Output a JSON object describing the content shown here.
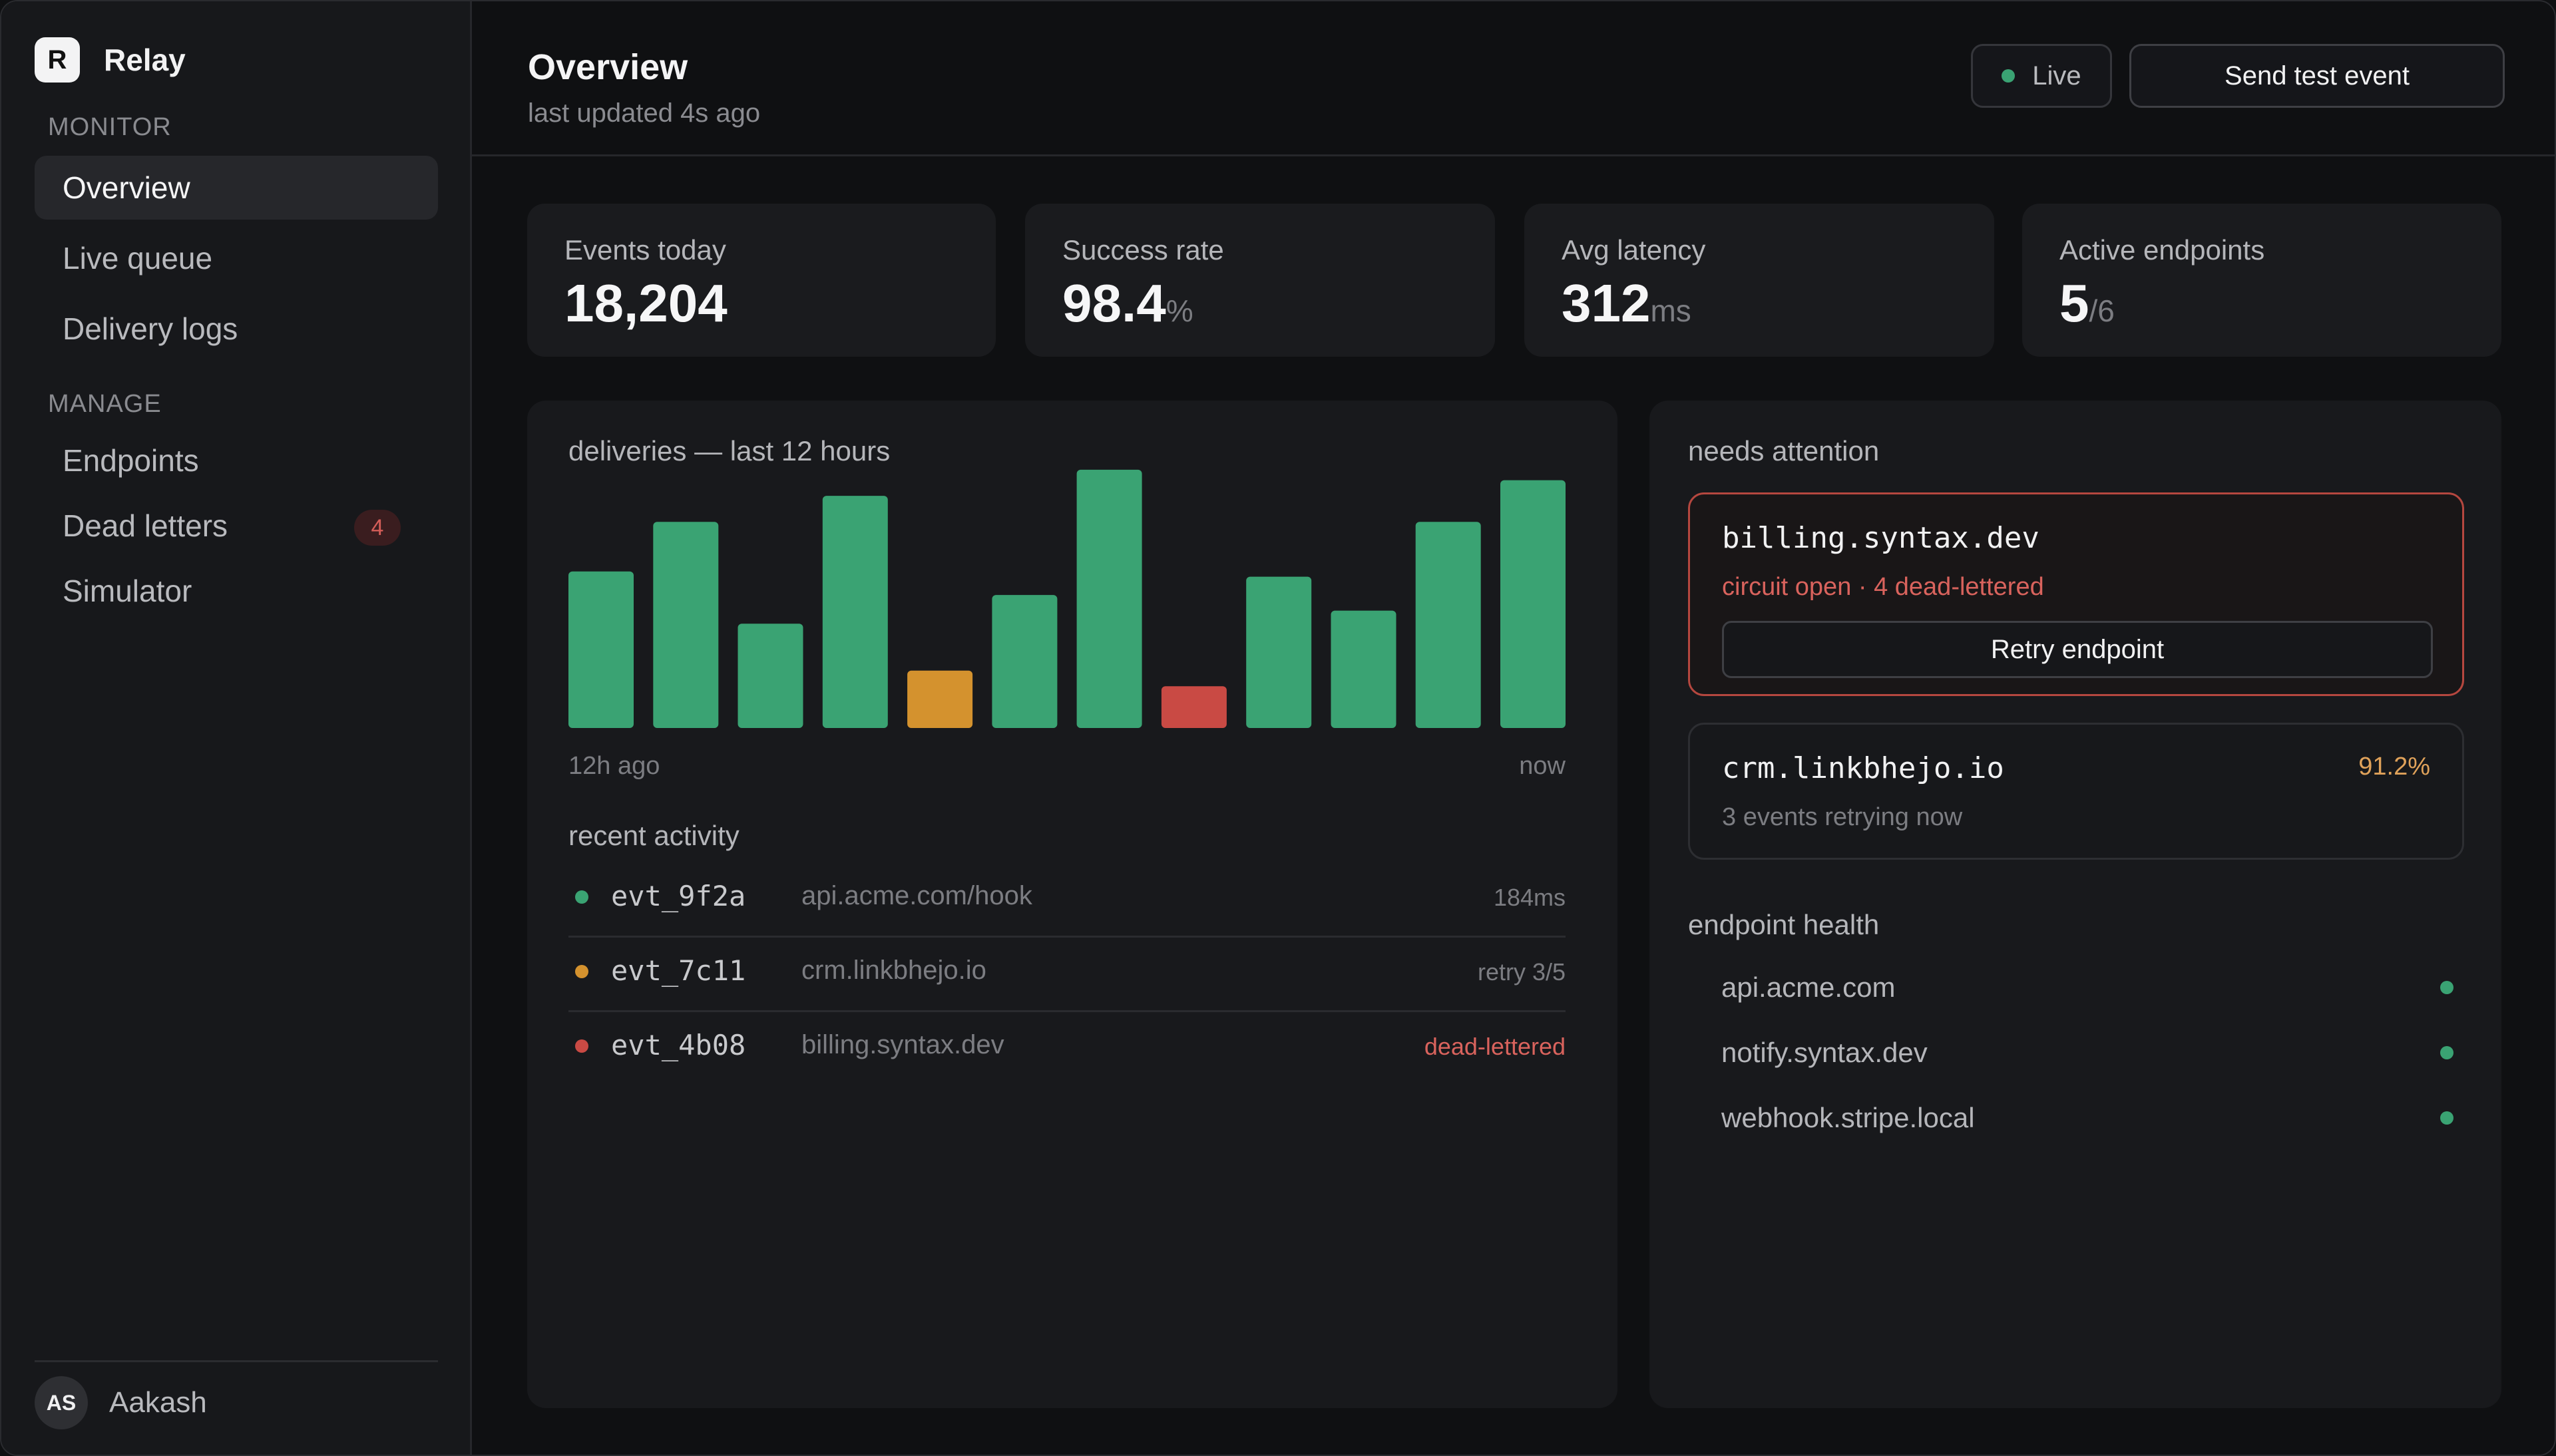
{
  "brand": {
    "logo_letter": "R",
    "name": "Relay"
  },
  "sidebar": {
    "sections": [
      {
        "label": "MONITOR",
        "items": [
          {
            "label": "Overview",
            "active": true
          },
          {
            "label": "Live queue"
          },
          {
            "label": "Delivery logs"
          }
        ]
      },
      {
        "label": "MANAGE",
        "items": [
          {
            "label": "Endpoints"
          },
          {
            "label": "Dead letters",
            "badge": "4"
          },
          {
            "label": "Simulator"
          }
        ]
      }
    ],
    "user": {
      "initials": "AS",
      "name": "Aakash"
    }
  },
  "header": {
    "title": "Overview",
    "subtitle": "last updated 4s ago",
    "live_label": "Live",
    "send_label": "Send test event"
  },
  "stats": [
    {
      "label": "Events today",
      "value": "18,204",
      "unit": ""
    },
    {
      "label": "Success rate",
      "value": "98.4",
      "unit": "%"
    },
    {
      "label": "Avg latency",
      "value": "312",
      "unit": "ms"
    },
    {
      "label": "Active endpoints",
      "value": "5",
      "unit": "/6"
    }
  ],
  "colors": {
    "success": "#3aa373",
    "warning": "#d4922e",
    "error": "#c94a44",
    "attention_border": "#b5473f",
    "rate_warning": "#e0a25a"
  },
  "deliveries": {
    "title": "deliveries — last 12 hours",
    "x_start_label": "12h ago",
    "x_end_label": "now"
  },
  "chart_data": {
    "type": "bar",
    "title": "deliveries — last 12 hours",
    "x_labels": [
      "12h ago",
      "now"
    ],
    "values": [
      60,
      79,
      40,
      89,
      22,
      51,
      99,
      16,
      58,
      45,
      79,
      95
    ],
    "statuses": [
      "success",
      "success",
      "success",
      "success",
      "warning",
      "success",
      "success",
      "error",
      "success",
      "success",
      "success",
      "success"
    ],
    "ylim": [
      0,
      100
    ],
    "grid": false
  },
  "activity": {
    "title": "recent activity",
    "rows": [
      {
        "id": "evt_9f2a",
        "host": "api.acme.com/hook",
        "meta": "184ms",
        "status": "success"
      },
      {
        "id": "evt_7c11",
        "host": "crm.linkbhejo.io",
        "meta": "retry 3/5",
        "status": "warning"
      },
      {
        "id": "evt_4b08",
        "host": "billing.syntax.dev",
        "meta": "dead-lettered",
        "status": "error"
      }
    ]
  },
  "attention": {
    "title": "needs attention",
    "primary": {
      "host": "billing.syntax.dev",
      "status": "circuit open · 4 dead-lettered",
      "action": "Retry endpoint"
    },
    "secondary": {
      "host": "crm.linkbhejo.io",
      "rate": "91.2%",
      "status": "3 events retrying now"
    }
  },
  "health": {
    "title": "endpoint health",
    "items": [
      {
        "host": "api.acme.com"
      },
      {
        "host": "notify.syntax.dev"
      },
      {
        "host": "webhook.stripe.local"
      }
    ]
  }
}
